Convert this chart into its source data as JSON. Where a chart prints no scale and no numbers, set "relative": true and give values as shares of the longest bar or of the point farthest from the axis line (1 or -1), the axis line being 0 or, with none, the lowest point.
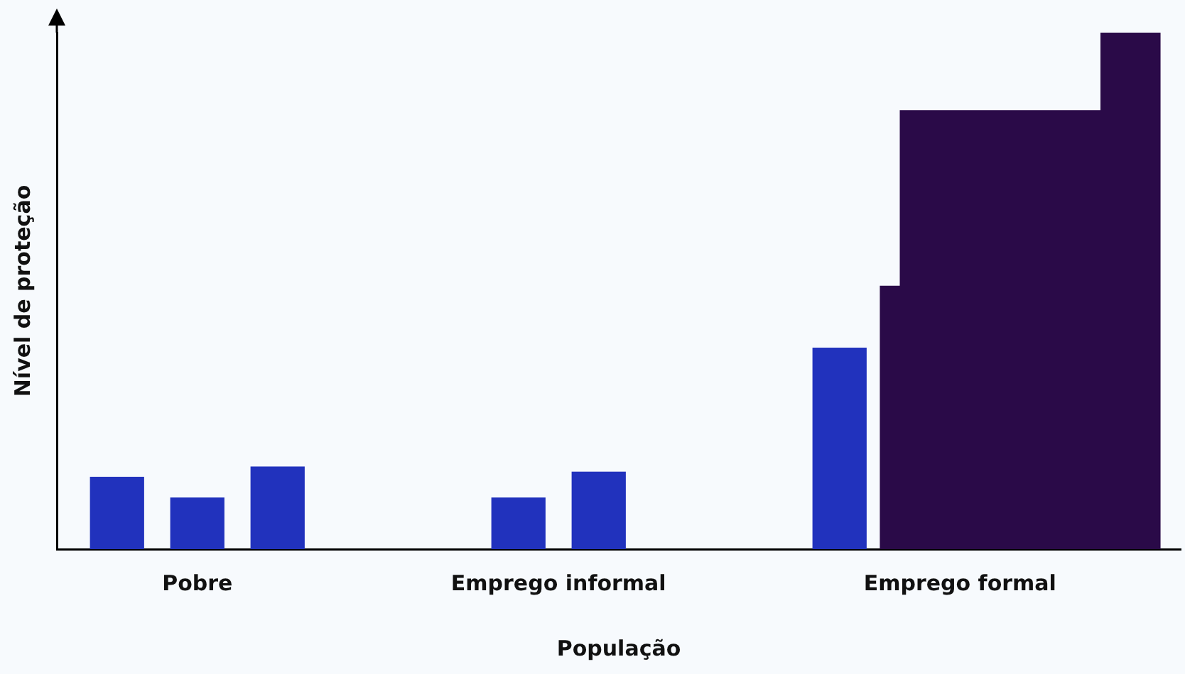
{
  "chart_data": {
    "type": "bar",
    "relative": true,
    "xlabel": "População",
    "ylabel": "Nível de proteção",
    "categories": [
      null,
      null,
      null,
      "Pobre",
      null,
      null,
      null,
      null,
      null,
      null,
      null,
      null,
      "Emprego informal",
      null,
      null,
      null,
      null,
      null,
      null,
      null,
      null,
      null,
      "Emprego formal",
      null,
      null,
      null,
      null,
      null
    ],
    "series": [
      {
        "color": "#2132bd",
        "values": [
          null,
          0.14,
          null,
          0.1,
          null,
          0.16,
          null,
          null,
          null,
          null,
          null,
          0.1,
          null,
          0.15,
          null,
          null,
          null,
          null,
          null,
          0.39,
          null,
          null,
          null,
          null,
          null,
          null,
          null,
          null
        ]
      },
      {
        "type": "area",
        "color": "#2a0a48",
        "values": [
          null,
          null,
          null,
          null,
          null,
          null,
          null,
          null,
          null,
          null,
          null,
          null,
          null,
          null,
          null,
          null,
          null,
          null,
          null,
          null,
          0.51,
          0.85,
          0.85,
          0.85,
          0.85,
          0.85,
          1,
          1
        ]
      }
    ],
    "grid": false,
    "legend": false
  }
}
